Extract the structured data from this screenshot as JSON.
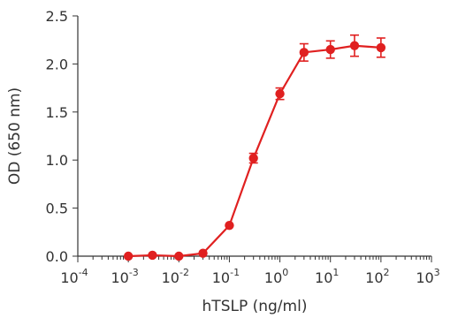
{
  "chart_data": {
    "type": "line",
    "title": "",
    "xlabel": "hTSLP (ng/ml)",
    "ylabel": "OD (650 nm)",
    "x_scale": "log",
    "xlim": [
      0.0001,
      1000
    ],
    "ylim": [
      0,
      2.5
    ],
    "x_ticks": [
      {
        "base": "10",
        "exp": "-4"
      },
      {
        "base": "10",
        "exp": "-3"
      },
      {
        "base": "10",
        "exp": "-2"
      },
      {
        "base": "10",
        "exp": "-1"
      },
      {
        "base": "10",
        "exp": "0"
      },
      {
        "base": "10",
        "exp": "1"
      },
      {
        "base": "10",
        "exp": "2"
      },
      {
        "base": "10",
        "exp": "3"
      }
    ],
    "y_ticks": [
      "0.0",
      "0.5",
      "1.0",
      "1.5",
      "2.0",
      "2.5"
    ],
    "grid": false,
    "color": "#e02020",
    "series": [
      {
        "x": [
          0.001,
          0.003,
          0.01,
          0.03,
          0.1,
          0.3,
          1,
          3,
          10,
          30,
          100
        ],
        "y": [
          0.0,
          0.01,
          0.0,
          0.03,
          0.32,
          1.02,
          1.69,
          2.12,
          2.15,
          2.19,
          2.17
        ],
        "error": [
          0.01,
          0.01,
          0.01,
          0.01,
          0.02,
          0.05,
          0.06,
          0.09,
          0.09,
          0.11,
          0.1
        ]
      }
    ]
  }
}
